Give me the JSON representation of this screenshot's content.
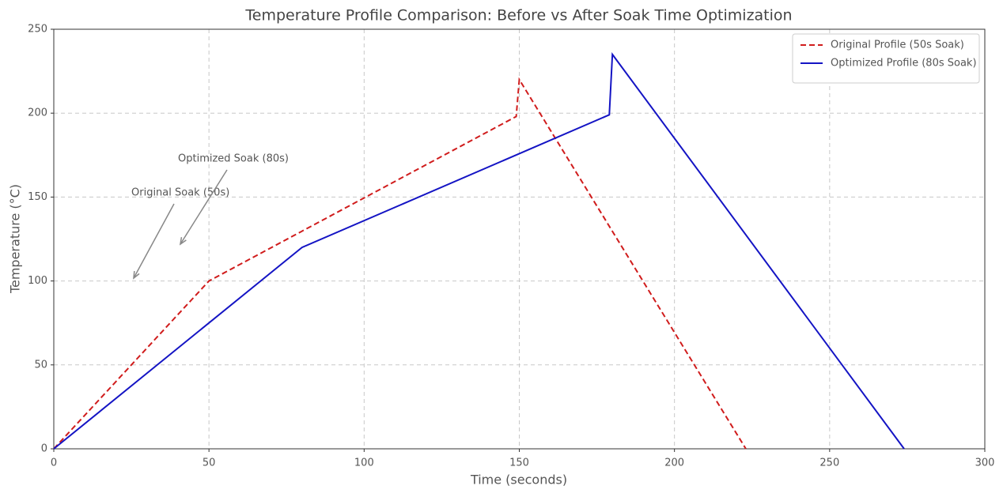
{
  "chart_data": {
    "type": "line",
    "title": "Temperature Profile Comparison: Before vs After Soak Time Optimization",
    "x_label": "Time (seconds)",
    "y_label": "Temperature (°C)",
    "xlim": [
      0,
      300
    ],
    "xticks": [
      0,
      50,
      100,
      150,
      200,
      250,
      300
    ],
    "ylim": [
      0,
      250
    ],
    "yticks": [
      0,
      50,
      100,
      150,
      200,
      250
    ],
    "grid": true,
    "legend": "upper right",
    "series": [
      {
        "name": "Original Profile (50s Soak)",
        "color": "#d01c1c",
        "style": "dashed",
        "x": [
          0,
          50,
          149,
          150,
          223
        ],
        "values": [
          0,
          100,
          198,
          220,
          0
        ]
      },
      {
        "name": "Optimized Profile (80s Soak)",
        "color": "#1414c4",
        "style": "solid",
        "x": [
          0,
          80,
          179,
          180,
          274
        ],
        "values": [
          0,
          120,
          199,
          235,
          0
        ]
      }
    ],
    "annotations": [
      "Original Soak (50s)",
      "Optimized Soak (80s)"
    ]
  }
}
